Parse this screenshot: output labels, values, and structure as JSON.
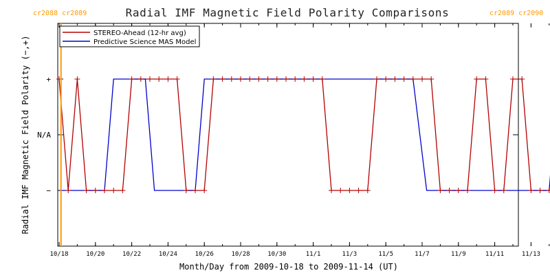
{
  "chart_data": {
    "type": "line",
    "title": "Radial IMF Magnetic Field Polarity Comparisons",
    "xlabel": "Month/Day from 2009-10-18 to 2009-11-14 (UT)",
    "ylabel": "Radial IMF Magnetic Field Polarity (−,+)",
    "xlim": [
      "2009-10-18",
      "2009-11-14"
    ],
    "x_tick_labels": [
      "10/18",
      "10/20",
      "10/22",
      "10/24",
      "10/26",
      "10/28",
      "10/30",
      "11/1",
      "11/3",
      "11/5",
      "11/7",
      "11/9",
      "11/11",
      "11/13"
    ],
    "x_tick_dates": [
      "2009-10-18",
      "2009-10-20",
      "2009-10-22",
      "2009-10-24",
      "2009-10-26",
      "2009-10-28",
      "2009-10-30",
      "2009-11-01",
      "2009-11-03",
      "2009-11-05",
      "2009-11-07",
      "2009-11-09",
      "2009-11-11",
      "2009-11-13"
    ],
    "y_tick_labels": [
      "+",
      "N/A",
      "−"
    ],
    "y_tick_levels": [
      1,
      0,
      -1
    ],
    "ylim": [
      -2,
      2
    ],
    "legend_position": "top-left",
    "carrington": {
      "left": {
        "label": "cr2088 cr2089",
        "date": "2009-10-18 02:30"
      },
      "right": {
        "label": "cr2089 cr2090",
        "date": "2009-11-14 14:00"
      },
      "color": "#ff9900"
    },
    "series": [
      {
        "name": "STEREO-Ahead (12-hr avg)",
        "color": "#b30000",
        "marker": "+",
        "points": [
          [
            "2009-10-18 00:00",
            1
          ],
          [
            "2009-10-18 12:00",
            -1
          ],
          [
            "2009-10-19 00:00",
            1
          ],
          [
            "2009-10-19 12:00",
            -1
          ],
          [
            "2009-10-20 00:00",
            -1
          ],
          [
            "2009-10-20 12:00",
            -1
          ],
          [
            "2009-10-21 00:00",
            -1
          ],
          [
            "2009-10-21 12:00",
            -1
          ],
          [
            "2009-10-22 00:00",
            1
          ],
          [
            "2009-10-22 12:00",
            1
          ],
          [
            "2009-10-23 00:00",
            1
          ],
          [
            "2009-10-23 12:00",
            1
          ],
          [
            "2009-10-24 00:00",
            1
          ],
          [
            "2009-10-24 12:00",
            1
          ],
          [
            "2009-10-25 00:00",
            -1
          ],
          [
            "2009-10-25 12:00",
            -1
          ],
          [
            "2009-10-26 00:00",
            -1
          ],
          [
            "2009-10-26 12:00",
            1
          ],
          [
            "2009-10-27 00:00",
            1
          ],
          [
            "2009-10-27 12:00",
            1
          ],
          [
            "2009-10-28 00:00",
            1
          ],
          [
            "2009-10-28 12:00",
            1
          ],
          [
            "2009-10-29 00:00",
            1
          ],
          [
            "2009-10-29 12:00",
            1
          ],
          [
            "2009-10-30 00:00",
            1
          ],
          [
            "2009-10-30 12:00",
            1
          ],
          [
            "2009-10-31 00:00",
            1
          ],
          [
            "2009-10-31 12:00",
            1
          ],
          [
            "2009-11-01 00:00",
            1
          ],
          [
            "2009-11-01 12:00",
            1
          ],
          [
            "2009-11-02 00:00",
            -1
          ],
          [
            "2009-11-02 12:00",
            -1
          ],
          [
            "2009-11-03 00:00",
            -1
          ],
          [
            "2009-11-03 12:00",
            -1
          ],
          [
            "2009-11-04 00:00",
            -1
          ],
          [
            "2009-11-04 12:00",
            1
          ],
          [
            "2009-11-05 00:00",
            1
          ],
          [
            "2009-11-05 12:00",
            1
          ],
          [
            "2009-11-06 00:00",
            1
          ],
          [
            "2009-11-06 12:00",
            1
          ],
          [
            "2009-11-07 00:00",
            1
          ],
          [
            "2009-11-07 12:00",
            1
          ],
          [
            "2009-11-08 00:00",
            -1
          ],
          [
            "2009-11-08 12:00",
            -1
          ],
          [
            "2009-11-09 00:00",
            -1
          ],
          [
            "2009-11-09 12:00",
            -1
          ],
          [
            "2009-11-10 00:00",
            1
          ],
          [
            "2009-11-10 12:00",
            1
          ],
          [
            "2009-11-11 00:00",
            -1
          ],
          [
            "2009-11-11 12:00",
            -1
          ],
          [
            "2009-11-12 00:00",
            1
          ],
          [
            "2009-11-12 12:00",
            1
          ],
          [
            "2009-11-13 00:00",
            -1
          ],
          [
            "2009-11-13 12:00",
            -1
          ],
          [
            "2009-11-14 00:00",
            -1
          ],
          [
            "2009-11-14 12:00",
            -1
          ]
        ]
      },
      {
        "name": "Predictive Science MAS Model",
        "color": "#0000cc",
        "points": [
          [
            "2009-10-18 00:00",
            -1
          ],
          [
            "2009-10-20 12:00",
            -1
          ],
          [
            "2009-10-21 00:00",
            1
          ],
          [
            "2009-10-22 18:00",
            1
          ],
          [
            "2009-10-23 06:00",
            -1
          ],
          [
            "2009-10-25 12:00",
            -1
          ],
          [
            "2009-10-26 00:00",
            1
          ],
          [
            "2009-11-06 12:00",
            1
          ],
          [
            "2009-11-07 06:00",
            -1
          ],
          [
            "2009-11-14 00:00",
            -1
          ],
          [
            "2009-11-14 12:00",
            1
          ]
        ]
      }
    ]
  }
}
